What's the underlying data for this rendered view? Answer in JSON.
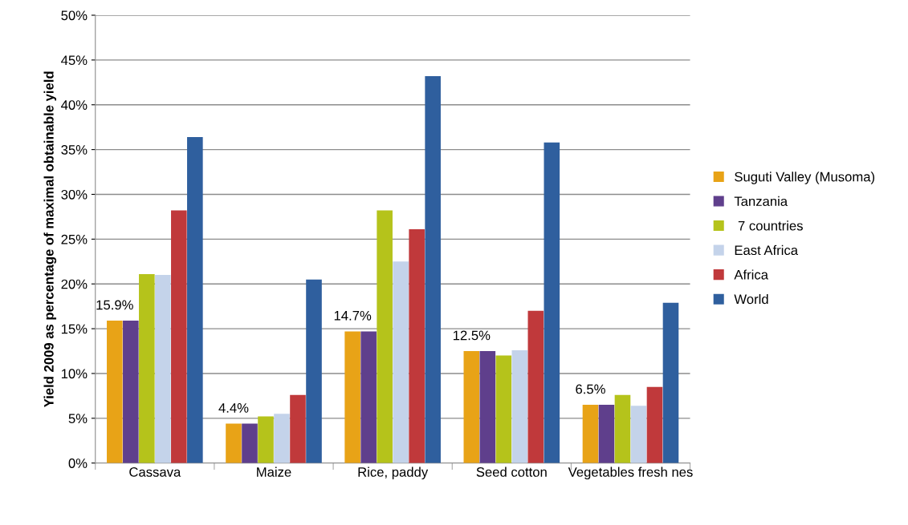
{
  "chart_data": {
    "type": "bar",
    "ylabel": "Yield 2009 as percentage of maximal obtainable yield",
    "categories": [
      "Cassava",
      "Maize",
      "Rice, paddy",
      "Seed cotton",
      "Vegetables fresh nes"
    ],
    "series": [
      {
        "name": "Suguti Valley (Musoma)",
        "color": "#e8a317",
        "values": [
          15.9,
          4.4,
          14.7,
          12.5,
          6.5
        ],
        "value_labels": [
          "15.9%",
          "4.4%",
          "14.7%",
          "12.5%",
          "6.5%"
        ]
      },
      {
        "name": "Tanzania",
        "color": "#5f3f8c",
        "values": [
          15.9,
          4.4,
          14.7,
          12.5,
          6.5
        ]
      },
      {
        "name": " 7 countries",
        "color": "#b5c31b",
        "values": [
          21.1,
          5.2,
          28.2,
          12.0,
          7.6
        ]
      },
      {
        "name": "East Africa",
        "color": "#c4d3ea",
        "values": [
          21.0,
          5.5,
          22.5,
          12.6,
          6.4
        ]
      },
      {
        "name": "Africa",
        "color": "#c0393b",
        "values": [
          28.2,
          7.6,
          26.1,
          17.0,
          8.5
        ]
      },
      {
        "name": "World",
        "color": "#2f5f9e",
        "values": [
          36.4,
          20.5,
          43.2,
          35.8,
          17.9
        ]
      }
    ],
    "ylim": [
      0,
      50
    ],
    "yticks": [
      {
        "value": 0,
        "label": "0%"
      },
      {
        "value": 5,
        "label": "5%"
      },
      {
        "value": 10,
        "label": "10%"
      },
      {
        "value": 15,
        "label": "15%"
      },
      {
        "value": 20,
        "label": "20%"
      },
      {
        "value": 25,
        "label": "25%"
      },
      {
        "value": 30,
        "label": "30%"
      },
      {
        "value": 35,
        "label": "35%"
      },
      {
        "value": 40,
        "label": "40%"
      },
      {
        "value": 45,
        "label": "45%"
      },
      {
        "value": 50,
        "label": "50%"
      }
    ],
    "grid": "y",
    "legend": "right"
  }
}
